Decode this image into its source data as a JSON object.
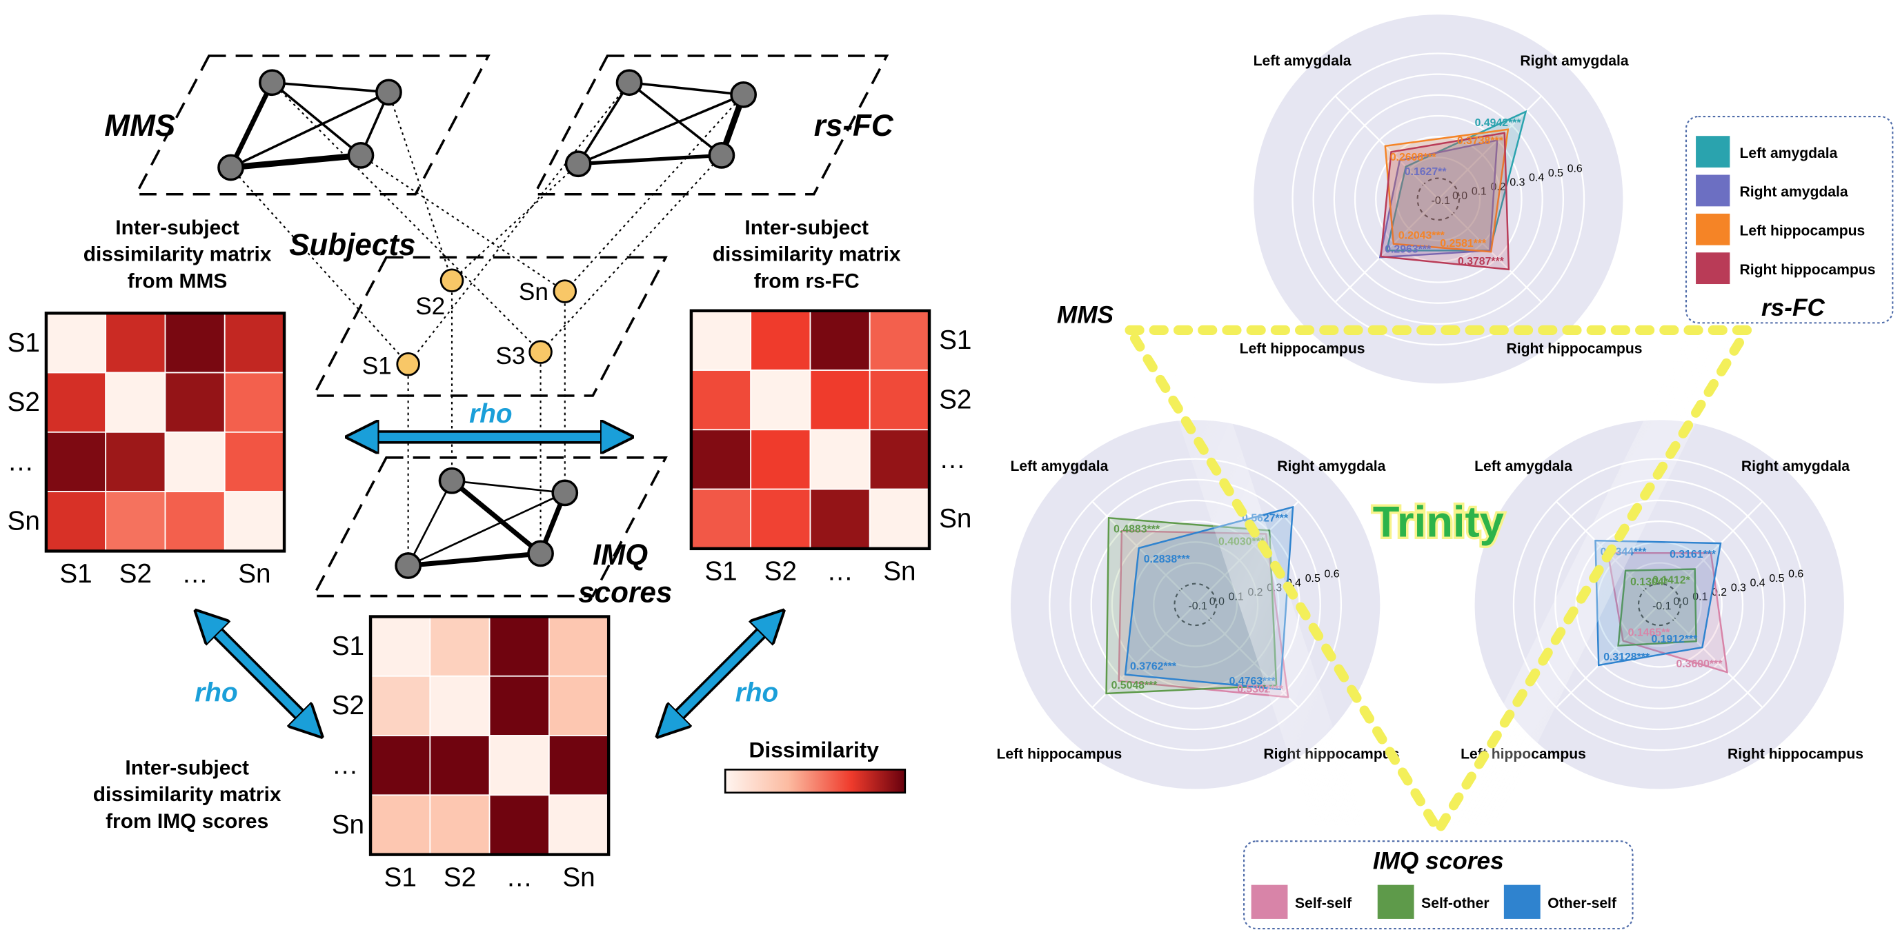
{
  "left_panel": {
    "plane_labels": {
      "mms": "MMS",
      "rsfc": "rs-FC",
      "subjects": "Subjects",
      "imq_line1": "IMQ",
      "imq_line2": "scores"
    },
    "subject_nodes": [
      "S2",
      "Sn",
      "S1",
      "S3"
    ],
    "matrix_titles": {
      "mms": [
        "Inter-subject",
        "dissimilarity matrix",
        "from MMS"
      ],
      "rsfc": [
        "Inter-subject",
        "dissimilarity matrix",
        "from rs-FC"
      ],
      "imq": [
        "Inter-subject",
        "dissimilarity matrix",
        "from IMQ scores"
      ]
    },
    "axis_labels": [
      "S1",
      "S2",
      "…",
      "Sn"
    ],
    "rho_label": "rho",
    "dissimilarity_label": "Dissimilarity",
    "matrices": {
      "mms": [
        [
          0.02,
          0.78,
          0.96,
          0.8
        ],
        [
          0.76,
          0.02,
          0.9,
          0.6
        ],
        [
          0.95,
          0.88,
          0.02,
          0.63
        ],
        [
          0.75,
          0.55,
          0.6,
          0.02
        ]
      ],
      "rsfc": [
        [
          0.02,
          0.7,
          0.96,
          0.6
        ],
        [
          0.66,
          0.02,
          0.7,
          0.66
        ],
        [
          0.94,
          0.7,
          0.02,
          0.9
        ],
        [
          0.62,
          0.68,
          0.9,
          0.02
        ]
      ],
      "imq": [
        [
          0.03,
          0.22,
          0.98,
          0.28
        ],
        [
          0.2,
          0.03,
          0.98,
          0.28
        ],
        [
          0.98,
          0.98,
          0.03,
          0.98
        ],
        [
          0.28,
          0.28,
          0.98,
          0.03
        ]
      ]
    }
  },
  "right_panel": {
    "center_label": "Trinity",
    "triangle_labels": {
      "mms": "MMS"
    },
    "rsfc_legend": {
      "title": "rs-FC",
      "items": [
        {
          "label": "Left amygdala",
          "color": "#2aa3ae"
        },
        {
          "label": "Right amygdala",
          "color": "#6c6fc2"
        },
        {
          "label": "Left hippocampus",
          "color": "#f58426"
        },
        {
          "label": "Right hippocampus",
          "color": "#b93b57"
        }
      ]
    },
    "imq_legend": {
      "title": "IMQ scores",
      "items": [
        {
          "label": "Self-self",
          "color": "#d884a8"
        },
        {
          "label": "Self-other",
          "color": "#5e9a4a"
        },
        {
          "label": "Other-self",
          "color": "#2f83cf"
        }
      ]
    },
    "radar_scale": [
      "-0.1",
      "0.0",
      "0.1",
      "0.2",
      "0.3",
      "0.4",
      "0.5",
      "0.6"
    ]
  },
  "chart_data": [
    {
      "type": "radar",
      "comparison": "MMS vs rs-FC",
      "axes": [
        "Right amygdala",
        "Right hippocampus",
        "Left hippocampus",
        "Left amygdala"
      ],
      "range": [
        -0.1,
        0.6
      ],
      "series": [
        {
          "name": "Left amygdala",
          "color": "#2aa3ae",
          "values": [
            0.4942,
            0.25,
            0.25,
            0.12
          ],
          "labels": [
            "0.4942***",
            "",
            "",
            ""
          ]
        },
        {
          "name": "Right amygdala",
          "color": "#6c6fc2",
          "values": [
            0.3,
            0.25,
            0.2963,
            0.1627
          ],
          "labels": [
            "",
            "",
            "0.2963***",
            "0.1627**"
          ]
        },
        {
          "name": "Left hippocampus",
          "color": "#f58426",
          "values": [
            0.3738,
            0.2581,
            0.2043,
            0.2608
          ],
          "labels": [
            "0.3738***",
            "0.2581***",
            "0.2043***",
            "0.2608***"
          ]
        },
        {
          "name": "Right hippocampus",
          "color": "#b93b57",
          "values": [
            0.35,
            0.3787,
            0.29,
            0.22
          ],
          "labels": [
            "",
            "0.3787***",
            "",
            ""
          ]
        }
      ]
    },
    {
      "type": "radar",
      "comparison": "MMS vs IMQ scores",
      "axes": [
        "Right amygdala",
        "Right hippocampus",
        "Left hippocampus",
        "Left amygdala"
      ],
      "range": [
        -0.1,
        0.6
      ],
      "series": [
        {
          "name": "Self-self",
          "color": "#d884a8",
          "values": [
            0.38,
            0.5302,
            0.42,
            0.4
          ],
          "labels": [
            "",
            "0.5302***",
            "",
            ""
          ]
        },
        {
          "name": "Self-other",
          "color": "#5e9a4a",
          "values": [
            0.403,
            0.45,
            0.5048,
            0.4883
          ],
          "labels": [
            "0.4030***",
            "",
            "0.5048***",
            "0.4883***"
          ]
        },
        {
          "name": "Other-self",
          "color": "#2f83cf",
          "values": [
            0.5627,
            0.4763,
            0.3762,
            0.2838
          ],
          "labels": [
            "0.5627***",
            "0.4763***",
            "0.3762***",
            "0.2838***"
          ]
        }
      ]
    },
    {
      "type": "radar",
      "comparison": "rs-FC vs IMQ scores",
      "axes": [
        "Right amygdala",
        "Right hippocampus",
        "Left hippocampus",
        "Left amygdala"
      ],
      "range": [
        -0.1,
        0.6
      ],
      "series": [
        {
          "name": "Self-self",
          "color": "#d884a8",
          "values": [
            0.25,
            0.36,
            0.1465,
            0.25
          ],
          "labels": [
            "",
            "0.3600***",
            "0.1465**",
            ""
          ]
        },
        {
          "name": "Self-other",
          "color": "#5e9a4a",
          "values": [
            0.1412,
            0.15,
            0.18,
            0.1304
          ],
          "labels": [
            "0.1412*",
            "",
            "",
            "0.1304*"
          ]
        },
        {
          "name": "Other-self",
          "color": "#2f83cf",
          "values": [
            0.3161,
            0.1912,
            0.3128,
            0.3344
          ],
          "labels": [
            "0.3161***",
            "0.1912***",
            "0.3128***",
            "0.3344***"
          ]
        }
      ]
    }
  ]
}
